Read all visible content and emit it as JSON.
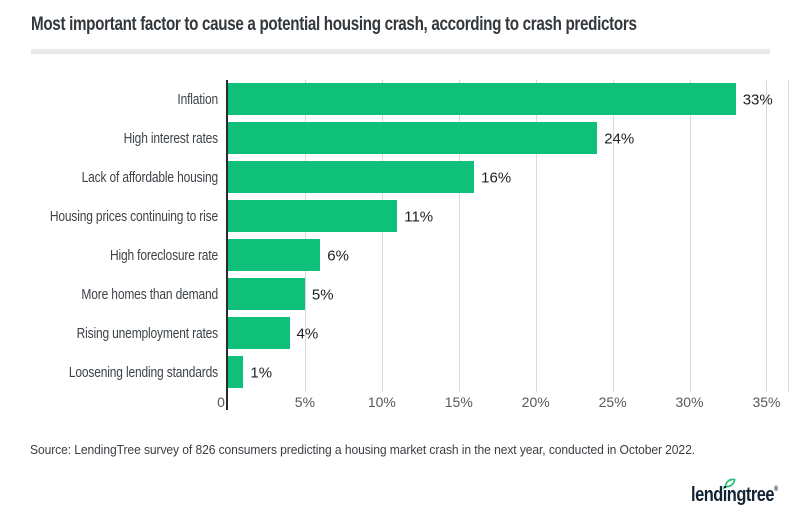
{
  "header": {
    "title": "Most important factor to cause a potential housing crash, according to crash predictors"
  },
  "chart_data": {
    "type": "bar",
    "orientation": "horizontal",
    "title": "Most important factor to cause a potential housing crash, according to crash predictors",
    "categories": [
      "Inflation",
      "High interest rates",
      "Lack of affordable housing",
      "Housing prices continuing to rise",
      "High foreclosure rate",
      "More homes than demand",
      "Rising unemployment rates",
      "Loosening lending standards"
    ],
    "values": [
      33,
      24,
      16,
      11,
      6,
      5,
      4,
      1
    ],
    "value_labels": [
      "33%",
      "24%",
      "16%",
      "11%",
      "6%",
      "5%",
      "4%",
      "1%"
    ],
    "x_ticks": [
      {
        "value": 0,
        "label": "0"
      },
      {
        "value": 5,
        "label": "5%"
      },
      {
        "value": 10,
        "label": "10%"
      },
      {
        "value": 15,
        "label": "15%"
      },
      {
        "value": 20,
        "label": "20%"
      },
      {
        "value": 25,
        "label": "25%"
      },
      {
        "value": 30,
        "label": "30%"
      },
      {
        "value": 35,
        "label": "35%"
      }
    ],
    "xlim": [
      0,
      35
    ],
    "grid": true,
    "legend": "none",
    "bar_color": "#0ec07a",
    "gridline_color": "#dadada",
    "axis_color": "#28292b"
  },
  "footer": {
    "source": "Source: LendingTree survey of 826 consumers predicting a housing market crash in the next year, conducted in October 2022.",
    "logo": {
      "text": "lendingtree",
      "registered": "®",
      "navy": "#122435",
      "leaf_green": "#28c07a"
    }
  }
}
